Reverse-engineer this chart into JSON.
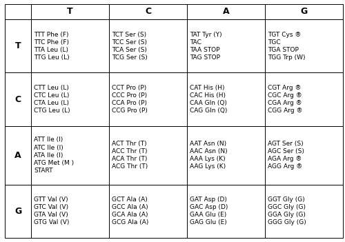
{
  "col_headers": [
    "",
    "T",
    "C",
    "A",
    "G"
  ],
  "row_headers": [
    "T",
    "C",
    "A",
    "G"
  ],
  "cells": [
    [
      "TTT Phe (F)\nTTC Phe (F)\nTTA Leu (L)\nTTG Leu (L)",
      "TCT Ser (S)\nTCC Ser (S)\nTCA Ser (S)\nTCG Ser (S)",
      "TAT Tyr (Y)\nTAC\nTAA STOP\nTAG STOP",
      "TGT Cys ®\nTGC\nTGA STOP\nTGG Trp (W)"
    ],
    [
      "CTT Leu (L)\nCTC Leu (L)\nCTA Leu (L)\nCTG Leu (L)",
      "CCT Pro (P)\nCCC Pro (P)\nCCA Pro (P)\nCCG Pro (P)",
      "CAT His (H)\nCAC His (H)\nCAA Gln (Q)\nCAG Gln (Q)",
      "CGT Arg ®\nCGC Arg ®\nCGA Arg ®\nCGG Arg ®"
    ],
    [
      "ATT Ile (I)\nATC Ile (I)\nATA Ile (I)\nATG Met (M )\nSTART",
      "ACT Thr (T)\nACC Thr (T)\nACA Thr (T)\nACG Thr (T)",
      "AAT Asn (N)\nAAC Asn (N)\nAAA Lys (K)\nAAG Lys (K)",
      "AGT Ser (S)\nAGC Ser (S)\nAGA Arg ®\nAGG Arg ®"
    ],
    [
      "GTT Val (V)\nGTC Val (V)\nGTA Val (V)\nGTG Val (V)",
      "GCT Ala (A)\nGCC Ala (A)\nGCA Ala (A)\nGCG Ala (A)",
      "GAT Asp (D)\nGAC Asp (D)\nGAA Glu (E)\nGAG Glu (E)",
      "GGT Gly (G)\nGGC Gly (G)\nGGA Gly (G)\nGGG Gly (G)"
    ]
  ],
  "bg_color": "#ffffff",
  "border_color": "#000000",
  "text_color": "#000000",
  "header_fontsize": 9,
  "cell_fontsize": 6.5,
  "row_header_fontsize": 9,
  "fig_width": 5.0,
  "fig_height": 3.51,
  "dpi": 100
}
